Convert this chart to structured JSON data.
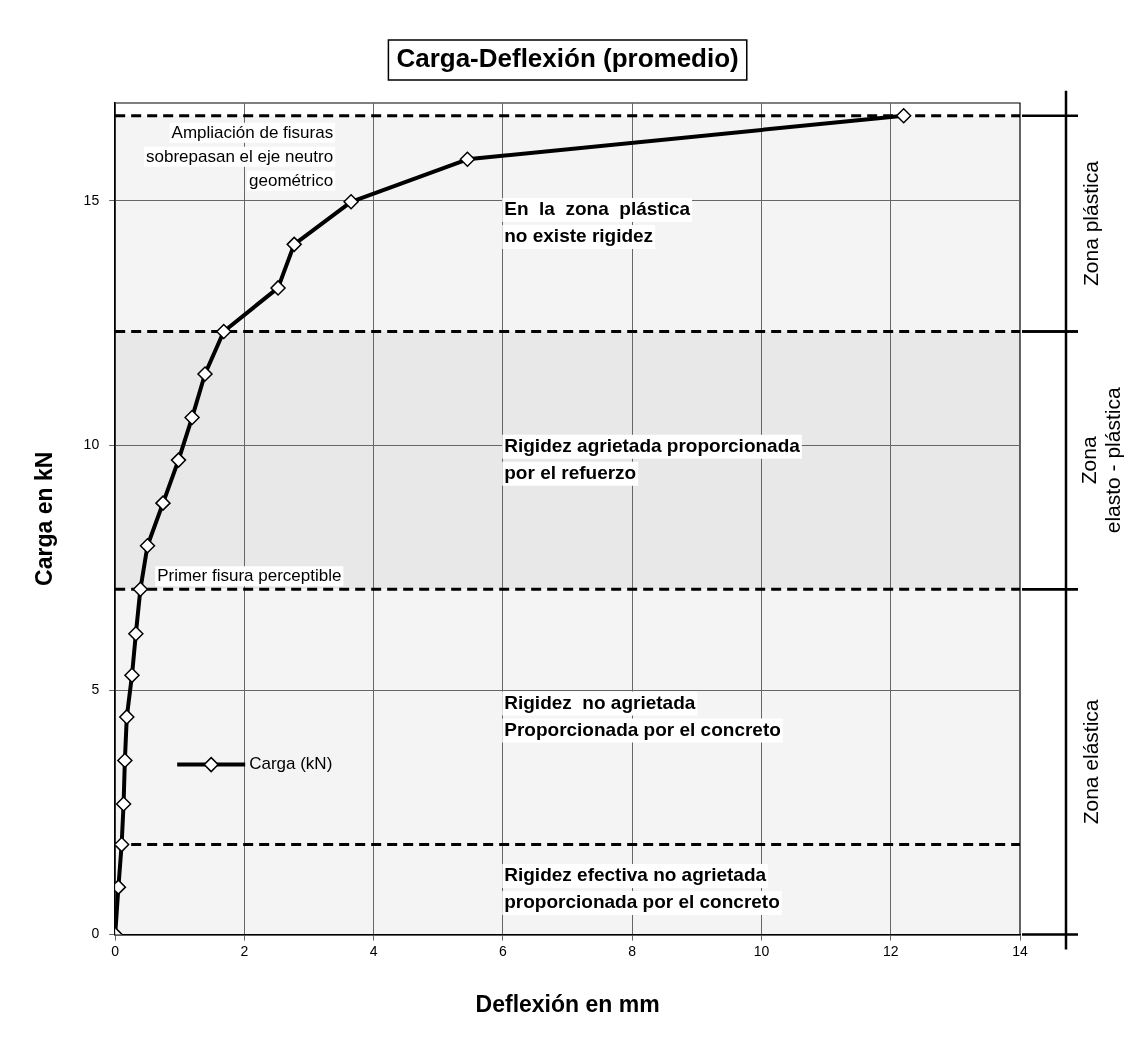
{
  "chart_data": {
    "type": "line",
    "title": "Carga-Deflexión (promedio)",
    "xlabel": "Deflexión en mm",
    "ylabel": "Carga en kN",
    "x": [
      0,
      0.05,
      0.1,
      0.13,
      0.15,
      0.18,
      0.26,
      0.32,
      0.39,
      0.5,
      0.74,
      0.98,
      1.19,
      1.39,
      1.68,
      2.52,
      2.77,
      3.65,
      5.45,
      12.2
    ],
    "series": [
      {
        "name": "Carga (kN)",
        "color": "#000000",
        "values": [
          0,
          0.97,
          1.84,
          2.67,
          3.56,
          4.45,
          5.3,
          6.15,
          7.06,
          7.95,
          8.82,
          9.7,
          10.57,
          11.46,
          12.33,
          13.22,
          14.11,
          14.98,
          15.85,
          16.74
        ]
      }
    ],
    "xlim": [
      0,
      14
    ],
    "xticks": [
      0,
      2,
      4,
      6,
      8,
      10,
      12,
      14
    ],
    "ylim": [
      0,
      17
    ],
    "yticks": [
      0,
      5,
      10,
      15
    ],
    "grid": true,
    "legend": "bottom left",
    "marker": "diamond",
    "line_style": "solid",
    "ref_lines": [
      {
        "axis": "y",
        "value": 16.74,
        "label": "Ampliación de fisuras\nsobrepasan el eje neutro\ngeométrico",
        "color": "#000000",
        "line_style": "dashed"
      },
      {
        "axis": "y",
        "value": 12.33,
        "label": null,
        "color": "#000000",
        "line_style": "dashed"
      },
      {
        "axis": "y",
        "value": 7.06,
        "label": "Primer fisura perceptible",
        "color": "#000000",
        "line_style": "dashed"
      },
      {
        "axis": "y",
        "value": 1.84,
        "label": null,
        "color": "#000000",
        "line_style": "dashed"
      }
    ],
    "bands": [
      {
        "axis": "y",
        "from": 12.33,
        "to": 16.74,
        "label": "Zona plástica",
        "color": "#f4f4f4"
      },
      {
        "axis": "y",
        "from": 7.06,
        "to": 12.33,
        "label": "Zona\nelasto - plástica",
        "color": "#e8e8e8"
      },
      {
        "axis": "y",
        "from": 0,
        "to": 7.06,
        "label": "Zona elástica",
        "color": "#f4f4f4"
      }
    ],
    "annotations": [
      "En  la  zona  plástica\nno existe rigidez",
      "Rigidez agrietada proporcionada\npor el refuerzo",
      "Rigidez  no agrietada\nProporcionada por el concreto",
      "Rigidez efectiva no agrietada\nproporcionada por el concreto"
    ]
  }
}
